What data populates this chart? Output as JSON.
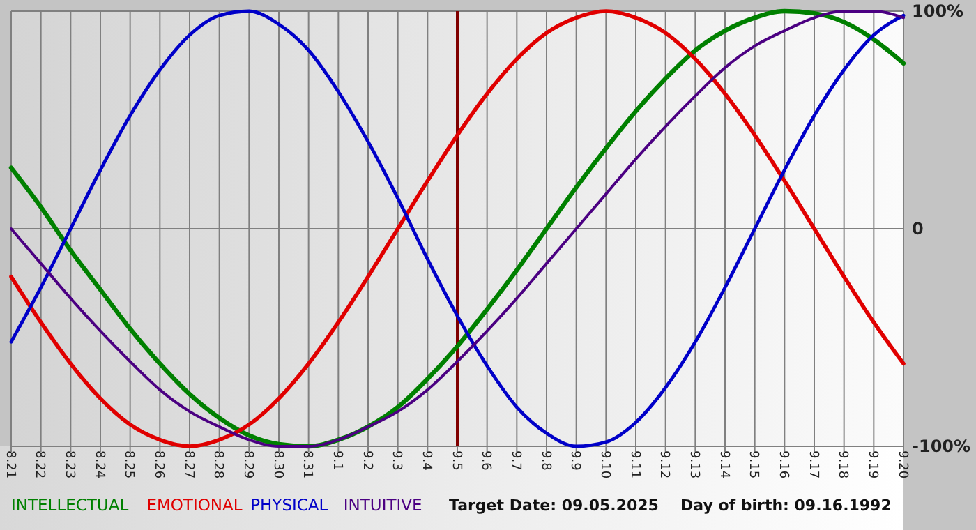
{
  "chart_data": {
    "type": "line",
    "categories": [
      "8.21",
      "8.22",
      "8.23",
      "8.24",
      "8.25",
      "8.26",
      "8.27",
      "8.28",
      "8.29",
      "8.30",
      "8.31",
      "9.1",
      "9.2",
      "9.3",
      "9.4",
      "9.5",
      "9.6",
      "9.7",
      "9.8",
      "9.9",
      "9.10",
      "9.11",
      "9.12",
      "9.13",
      "9.14",
      "9.15",
      "9.16",
      "9.17",
      "9.18",
      "9.19",
      "9.20"
    ],
    "series": [
      {
        "name": "INTELLECTUAL",
        "color": "#008000",
        "values": [
          28,
          10,
          -10,
          -28,
          -46,
          -62,
          -76,
          -87,
          -95,
          -99,
          -100,
          -97,
          -91,
          -82,
          -69,
          -54,
          -37,
          -19,
          0,
          19,
          37,
          54,
          69,
          82,
          91,
          97,
          100,
          99,
          95,
          87,
          76
        ]
      },
      {
        "name": "EMOTIONAL",
        "color": "#e00000",
        "values": [
          -22,
          -43,
          -62,
          -78,
          -90,
          -97,
          -100,
          -97,
          -90,
          -78,
          -62,
          -43,
          -22,
          0,
          22,
          43,
          62,
          78,
          90,
          97,
          100,
          97,
          90,
          78,
          62,
          43,
          22,
          0,
          -22,
          -43,
          -62
        ]
      },
      {
        "name": "PHYSICAL",
        "color": "#0000c8",
        "values": [
          -52,
          -27,
          0,
          27,
          52,
          73,
          89,
          98,
          100,
          94,
          82,
          63,
          40,
          14,
          -14,
          -40,
          -63,
          -82,
          -94,
          -100,
          -98,
          -89,
          -73,
          -52,
          -27,
          0,
          27,
          52,
          73,
          89,
          98
        ]
      },
      {
        "name": "INTUITIVE",
        "color": "#4b0082",
        "values": [
          0,
          -16,
          -32,
          -47,
          -61,
          -74,
          -84,
          -91,
          -97,
          -100,
          -100,
          -97,
          -91,
          -84,
          -74,
          -61,
          -47,
          -32,
          -16,
          0,
          16,
          32,
          47,
          61,
          74,
          84,
          91,
          97,
          100,
          100,
          97
        ]
      }
    ],
    "ylim": [
      -100,
      100
    ],
    "yticks": [
      {
        "value": 100,
        "label": "100%"
      },
      0,
      {
        "value": -100,
        "label": "-100%"
      }
    ],
    "grid": true,
    "legend": "bottom",
    "line_style": "solid",
    "marker": "none",
    "ref_lines": [
      {
        "axis": "x",
        "value": "9.5",
        "color": "#800000"
      }
    ],
    "annotations": [
      "Target Date: 09.05.2025",
      "Day of birth: 09.16.1992"
    ]
  }
}
